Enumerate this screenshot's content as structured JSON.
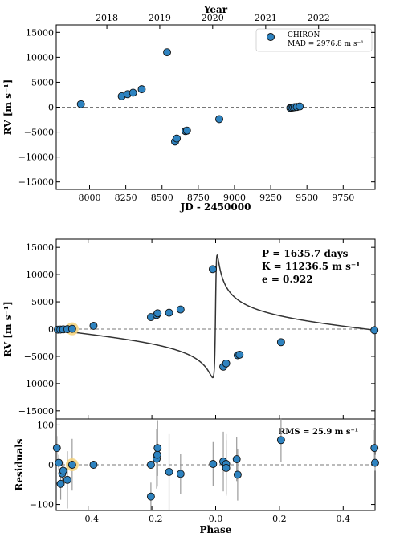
{
  "colors": {
    "point_fill": "#2e83c0",
    "point_stroke": "#111111",
    "highlight": "#f5d27a",
    "model_line": "#333333",
    "zero_line": "#777777",
    "error_bar": "#9a9a9a"
  },
  "chart_data": [
    {
      "type": "scatter",
      "xlabel": "JD - 2450000",
      "ylabel": "RV [m s⁻¹]",
      "top_axis_label": "Year",
      "top_axis_ticks": [
        {
          "label": "2018",
          "jd": 8119.5
        },
        {
          "label": "2019",
          "jd": 8484.5
        },
        {
          "label": "2020",
          "jd": 8849.5
        },
        {
          "label": "2021",
          "jd": 9215.5
        },
        {
          "label": "2022",
          "jd": 9580.5
        }
      ],
      "xlim": [
        7770,
        9970
      ],
      "ylim": [
        -16500,
        16500
      ],
      "xticks": [
        8000,
        8250,
        8500,
        8750,
        9000,
        9250,
        9500,
        9750
      ],
      "yticks": [
        -15000,
        -10000,
        -5000,
        0,
        5000,
        10000,
        15000
      ],
      "legend": {
        "position": "top-right",
        "name": "CHIRON",
        "mad": "MAD = 2976.8 m s⁻¹"
      },
      "series": [
        {
          "name": "CHIRON",
          "x": [
            7940,
            8222,
            8262,
            8300,
            8360,
            8535,
            8590,
            8602,
            8662,
            8672,
            8895,
            9385,
            9395,
            9405,
            9415,
            9430,
            9450
          ],
          "y": [
            600,
            2200,
            2600,
            2900,
            3600,
            11000,
            -6900,
            -6300,
            -4800,
            -4700,
            -2400,
            -150,
            -100,
            -50,
            0,
            50,
            150
          ]
        }
      ]
    },
    {
      "type": "line",
      "xlabel": "",
      "ylabel": "RV [m s⁻¹]",
      "xlim": [
        -0.5,
        0.5
      ],
      "ylim": [
        -16500,
        16500
      ],
      "yticks": [
        -15000,
        -10000,
        -5000,
        0,
        5000,
        10000,
        15000
      ],
      "annotations": [
        "P = 1635.7 days",
        "K = 11236.5 m s⁻¹",
        "e = 0.922"
      ],
      "model": {
        "period_days": 1635.7,
        "K": 11236.5,
        "e": 0.922,
        "omega_deg": 283
      },
      "points": {
        "phase": [
          -0.495,
          -0.487,
          -0.478,
          -0.465,
          -0.45,
          -0.383,
          -0.203,
          -0.185,
          -0.182,
          -0.146,
          -0.11,
          -0.009,
          0.024,
          0.033,
          0.069,
          0.075,
          0.205,
          0.498
        ],
        "y": [
          -100,
          -80,
          -50,
          -20,
          50,
          600,
          2200,
          2600,
          2900,
          3000,
          3600,
          11000,
          -6900,
          -6300,
          -4800,
          -4700,
          -2400,
          -200
        ],
        "highlight_index": 4
      }
    },
    {
      "type": "scatter",
      "xlabel": "Phase",
      "ylabel": "Residuals",
      "xlim": [
        -0.5,
        0.5
      ],
      "ylim": [
        -115,
        115
      ],
      "xticks": [
        -0.4,
        -0.2,
        0.0,
        0.2,
        0.4
      ],
      "yticks": [
        -100,
        0,
        100
      ],
      "rms_label": "RMS = 25.9 m s⁻¹",
      "points": {
        "phase": [
          -0.498,
          -0.492,
          -0.486,
          -0.481,
          -0.478,
          -0.465,
          -0.45,
          -0.383,
          -0.203,
          -0.203,
          -0.185,
          -0.183,
          -0.182,
          -0.146,
          -0.11,
          -0.008,
          0.024,
          0.033,
          0.033,
          0.066,
          0.069,
          0.205,
          0.498,
          0.5
        ],
        "y": [
          42,
          5,
          -48,
          -22,
          -15,
          -38,
          0,
          0,
          0,
          -80,
          15,
          25,
          42,
          -18,
          -23,
          2,
          8,
          2,
          -8,
          14,
          -25,
          62,
          42,
          5
        ],
        "err": [
          30,
          20,
          40,
          22,
          22,
          72,
          65,
          0,
          0,
          35,
          75,
          80,
          70,
          95,
          50,
          55,
          75,
          75,
          70,
          55,
          65,
          55,
          45,
          20
        ],
        "highlight_index": 6
      }
    }
  ]
}
